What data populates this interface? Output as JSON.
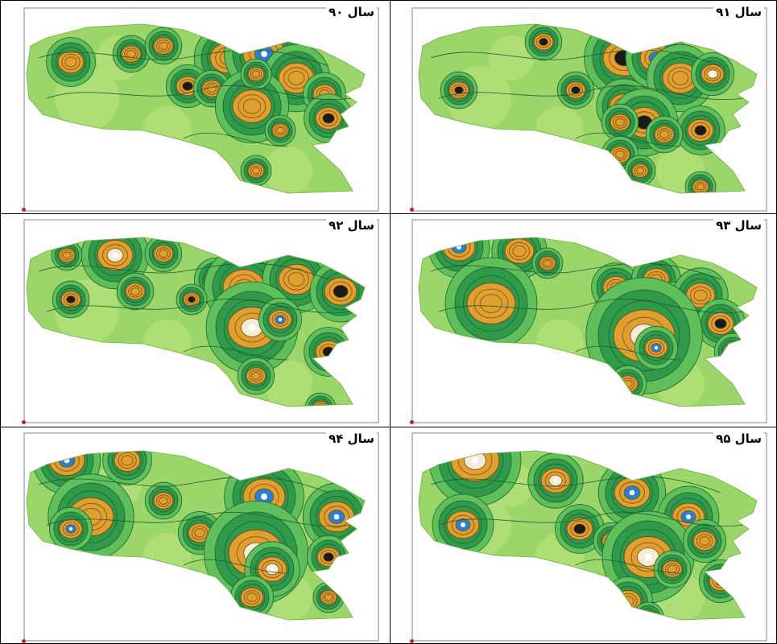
{
  "panels": [
    {
      "label": "سال ۹۰",
      "id": "p90"
    },
    {
      "label": "سال ۹۱",
      "id": "p91"
    },
    {
      "label": "سال ۹۲",
      "id": "p92"
    },
    {
      "label": "سال ۹۳",
      "id": "p93"
    },
    {
      "label": "سال ۹۴",
      "id": "p94"
    },
    {
      "label": "سال ۹۵",
      "id": "p95"
    }
  ],
  "colors": {
    "base": "#9ad66a",
    "light_green": "#b8e07c",
    "mid_green": "#5fbf5a",
    "dark_green": "#2f9a4a",
    "contour": "#1f5e2e",
    "orange": "#e0a030",
    "brown": "#7a4a18",
    "cream": "#f5ecd8",
    "blue": "#2b7fcf",
    "dark": "#1a1a1a"
  }
}
